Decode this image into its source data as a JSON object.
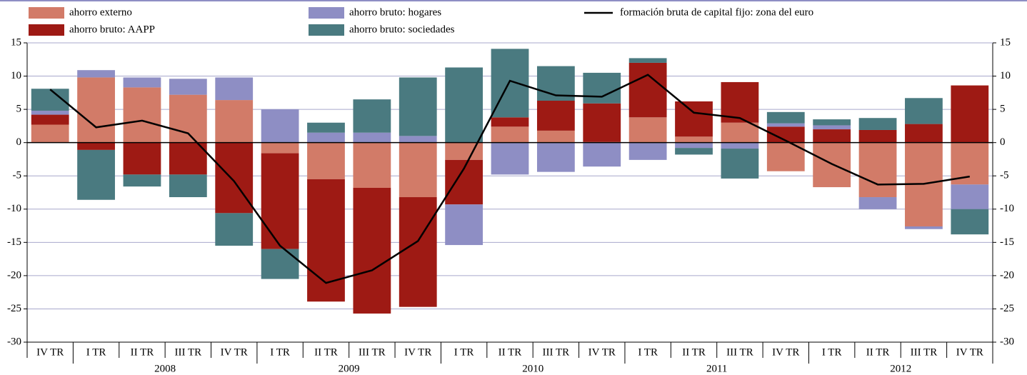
{
  "chart_data": {
    "type": "bar",
    "stacked": true,
    "categories": [
      "IV TR",
      "I TR",
      "II TR",
      "III TR",
      "IV TR",
      "I TR",
      "II TR",
      "III TR",
      "IV TR",
      "I TR",
      "II TR",
      "III TR",
      "IV TR",
      "I TR",
      "II TR",
      "III TR",
      "IV TR",
      "I TR",
      "II TR",
      "III TR",
      "IV TR"
    ],
    "year_labels": [
      "2008",
      "2009",
      "2010",
      "2011",
      "2012"
    ],
    "series": [
      {
        "name": "ahorro externo",
        "color": "#d27b68",
        "values": [
          2.7,
          9.8,
          8.3,
          7.2,
          6.4,
          -1.6,
          -5.5,
          -6.8,
          -8.2,
          -2.6,
          2.4,
          1.8,
          0.1,
          3.8,
          0.9,
          3.0,
          -4.3,
          -6.7,
          -8.2,
          -12.6,
          -6.3
        ]
      },
      {
        "name": "ahorro bruto: AAPP",
        "color": "#9e1a14",
        "values": [
          1.5,
          -1.1,
          -4.8,
          -4.8,
          -10.6,
          -14.4,
          -18.4,
          -18.9,
          -16.5,
          -6.7,
          1.4,
          4.5,
          5.8,
          8.2,
          5.3,
          6.1,
          2.4,
          2.0,
          1.9,
          2.8,
          8.6
        ]
      },
      {
        "name": "ahorro bruto: hogares",
        "color": "#8e8ec4",
        "values": [
          0.6,
          1.1,
          1.5,
          2.4,
          3.4,
          5.0,
          1.5,
          1.5,
          1.0,
          -6.1,
          -4.8,
          -4.4,
          -3.6,
          -2.6,
          -0.8,
          -0.9,
          0.5,
          0.6,
          -1.8,
          -0.4,
          -3.7
        ]
      },
      {
        "name": "ahorro bruto: sociedades",
        "color": "#4a7a80",
        "values": [
          3.3,
          -7.5,
          -1.8,
          -3.4,
          -4.9,
          -4.5,
          1.5,
          5.0,
          8.8,
          11.3,
          10.3,
          5.2,
          4.6,
          0.7,
          -1.0,
          -4.5,
          1.7,
          0.9,
          1.8,
          3.9,
          -3.8
        ]
      },
      {
        "name": "formación bruta de capital fijo: zona del euro",
        "type": "line",
        "color": "#000000",
        "values": [
          8.0,
          2.3,
          3.3,
          1.4,
          -5.8,
          -15.5,
          -21.1,
          -19.2,
          -14.8,
          -3.9,
          9.3,
          7.1,
          6.9,
          10.2,
          4.5,
          3.7,
          0.3,
          -3.2,
          -6.3,
          -6.2,
          -5.1
        ]
      }
    ],
    "ylim": [
      -30,
      15
    ],
    "yticks": [
      -30,
      -25,
      -20,
      -15,
      -10,
      -5,
      0,
      5,
      10,
      15
    ],
    "y2lim": [
      -30,
      15
    ],
    "y2ticks": [
      -30,
      -25,
      -20,
      -15,
      -10,
      -5,
      0,
      5,
      10,
      15
    ],
    "grid": true
  }
}
